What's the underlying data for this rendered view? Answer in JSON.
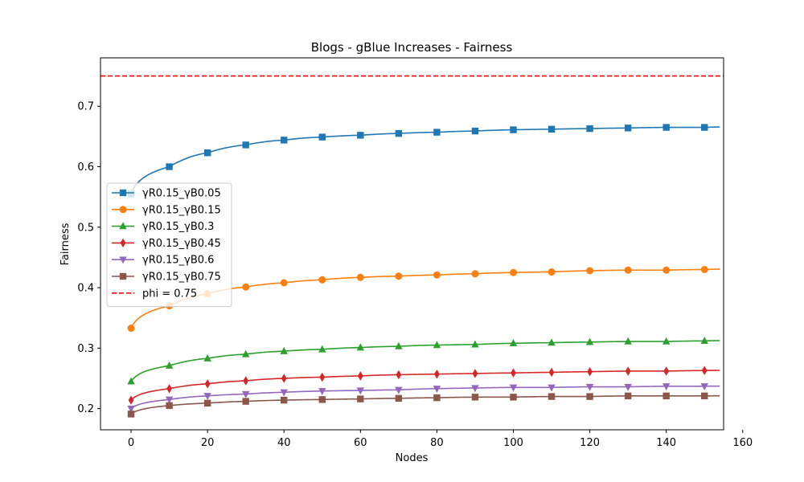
{
  "chart_data": {
    "type": "line",
    "title": "Blogs - gBlue Increases - Fairness",
    "xlabel": "Nodes",
    "ylabel": "Fairness",
    "xlim": [
      -8,
      155
    ],
    "ylim": [
      0.165,
      0.78
    ],
    "xticks": [
      0,
      20,
      40,
      60,
      80,
      100,
      120,
      140,
      160
    ],
    "yticks": [
      0.2,
      0.3,
      0.4,
      0.5,
      0.6,
      0.7
    ],
    "ytick_labels": [
      "0.2",
      "0.3",
      "0.4",
      "0.5",
      "0.6",
      "0.7"
    ],
    "grid": false,
    "legend_position": "center-left",
    "x": [
      0,
      10,
      20,
      30,
      40,
      50,
      60,
      70,
      80,
      90,
      100,
      110,
      120,
      130,
      140,
      150
    ],
    "series": [
      {
        "name": "γR0.15_γB0.05",
        "color": "#1f77b4",
        "marker": "square",
        "values": [
          0.555,
          0.6,
          0.623,
          0.636,
          0.644,
          0.649,
          0.652,
          0.655,
          0.657,
          0.659,
          0.661,
          0.662,
          0.663,
          0.664,
          0.665,
          0.665
        ]
      },
      {
        "name": "γR0.15_γB0.15",
        "color": "#ff7f0e",
        "marker": "circle",
        "values": [
          0.333,
          0.37,
          0.39,
          0.401,
          0.408,
          0.413,
          0.417,
          0.419,
          0.421,
          0.423,
          0.425,
          0.426,
          0.428,
          0.429,
          0.429,
          0.43
        ]
      },
      {
        "name": "γR0.15_γB0.3",
        "color": "#2ca02c",
        "marker": "triangle-up",
        "values": [
          0.245,
          0.271,
          0.283,
          0.29,
          0.295,
          0.298,
          0.301,
          0.303,
          0.305,
          0.306,
          0.308,
          0.309,
          0.31,
          0.311,
          0.311,
          0.312
        ]
      },
      {
        "name": "γR0.15_γB0.45",
        "color": "#d62728",
        "marker": "diamond",
        "values": [
          0.214,
          0.233,
          0.241,
          0.246,
          0.25,
          0.252,
          0.254,
          0.256,
          0.257,
          0.258,
          0.259,
          0.26,
          0.261,
          0.262,
          0.262,
          0.263
        ]
      },
      {
        "name": "γR0.15_γB0.6",
        "color": "#9467bd",
        "marker": "triangle-down",
        "values": [
          0.2,
          0.215,
          0.221,
          0.224,
          0.227,
          0.229,
          0.23,
          0.231,
          0.233,
          0.234,
          0.235,
          0.235,
          0.236,
          0.236,
          0.237,
          0.237
        ]
      },
      {
        "name": "γR0.15_γB0.75",
        "color": "#8c564b",
        "marker": "square",
        "values": [
          0.191,
          0.205,
          0.209,
          0.212,
          0.214,
          0.215,
          0.216,
          0.217,
          0.218,
          0.219,
          0.219,
          0.22,
          0.22,
          0.221,
          0.221,
          0.221
        ]
      }
    ],
    "reference_line": {
      "name": "phi = 0.75",
      "y": 0.75,
      "color": "#ff0000",
      "style": "dashed"
    }
  }
}
